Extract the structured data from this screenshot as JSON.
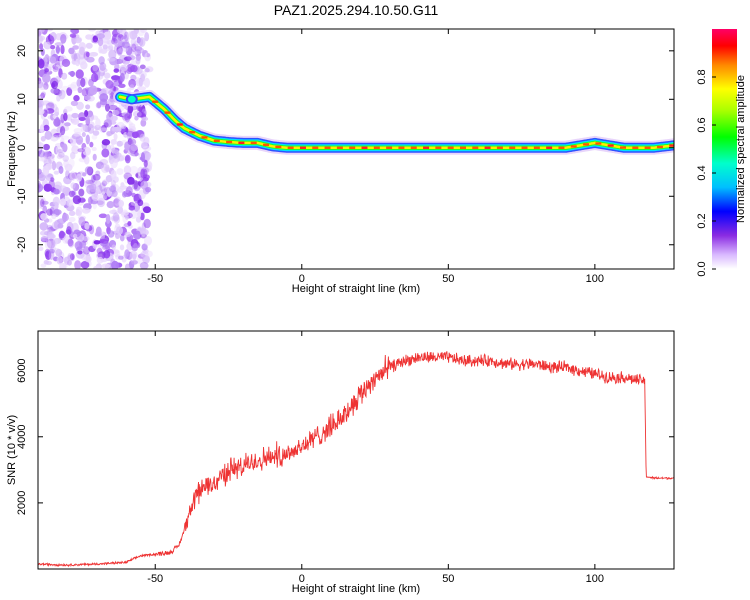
{
  "title": "PAZ1.2025.294.10.50.G11",
  "chart_data": [
    {
      "type": "heatmap",
      "xlabel": "Height of straight line (km)",
      "ylabel": "Frequency (Hz)",
      "xlim": [
        -90,
        127
      ],
      "ylim": [
        -25,
        24.5
      ],
      "x_ticks": [
        -50,
        0,
        50,
        100
      ],
      "y_ticks": [
        -20,
        -10,
        0,
        10,
        20
      ],
      "colorbar": {
        "label": "Normalized spectral amplitude",
        "range": [
          0,
          1
        ],
        "ticks": [
          0.0,
          0.2,
          0.4,
          0.6,
          0.8
        ],
        "tick_labels": [
          "0.0",
          "0.2",
          "0.4",
          "0.6",
          "0.8"
        ]
      },
      "noise_region_x": [
        -90,
        -52
      ],
      "ridge": {
        "x": [
          -90,
          -62,
          -58,
          -52,
          -47,
          -43,
          -40,
          -35,
          -30,
          -25,
          -20,
          -15,
          -10,
          -5,
          0,
          10,
          20,
          30,
          40,
          50,
          60,
          70,
          80,
          90,
          95,
          100,
          110,
          120,
          127
        ],
        "freq": [
          10.5,
          10.5,
          10.0,
          10.5,
          8.0,
          5.5,
          4.0,
          2.5,
          1.5,
          1.2,
          1.0,
          1.0,
          0.3,
          0.0,
          0.0,
          0.0,
          0.0,
          0.0,
          0.0,
          0.0,
          0.0,
          0.0,
          0.0,
          0.0,
          0.5,
          1.0,
          0.0,
          0.0,
          0.5
        ]
      }
    },
    {
      "type": "line",
      "xlabel": "Height of straight line (km)",
      "ylabel": "SNR (10 * v/v)",
      "xlim": [
        -90,
        127
      ],
      "ylim": [
        0,
        7200
      ],
      "x_ticks": [
        -50,
        0,
        50,
        100
      ],
      "y_ticks": [
        2000,
        4000,
        6000
      ],
      "color": "#ee3333",
      "series": [
        {
          "x": [
            -90,
            -80,
            -70,
            -60,
            -55,
            -50,
            -45,
            -42,
            -40,
            -38,
            -35,
            -30,
            -25,
            -20,
            -15,
            -10,
            -5,
            0,
            5,
            10,
            15,
            20,
            25,
            30,
            35,
            40,
            45,
            50,
            55,
            60,
            65,
            70,
            75,
            80,
            85,
            90,
            95,
            100,
            105,
            110,
            115,
            117,
            117.5,
            120,
            127
          ],
          "y": [
            150,
            120,
            150,
            200,
            400,
            450,
            500,
            700,
            1200,
            1700,
            2400,
            2600,
            3000,
            3100,
            3300,
            3400,
            3500,
            3700,
            4000,
            4300,
            4700,
            5300,
            5800,
            6100,
            6300,
            6400,
            6400,
            6400,
            6300,
            6300,
            6300,
            6200,
            6200,
            6200,
            6100,
            6100,
            6000,
            5900,
            5800,
            5800,
            5700,
            5700,
            2800,
            2750,
            2750
          ]
        }
      ]
    }
  ]
}
